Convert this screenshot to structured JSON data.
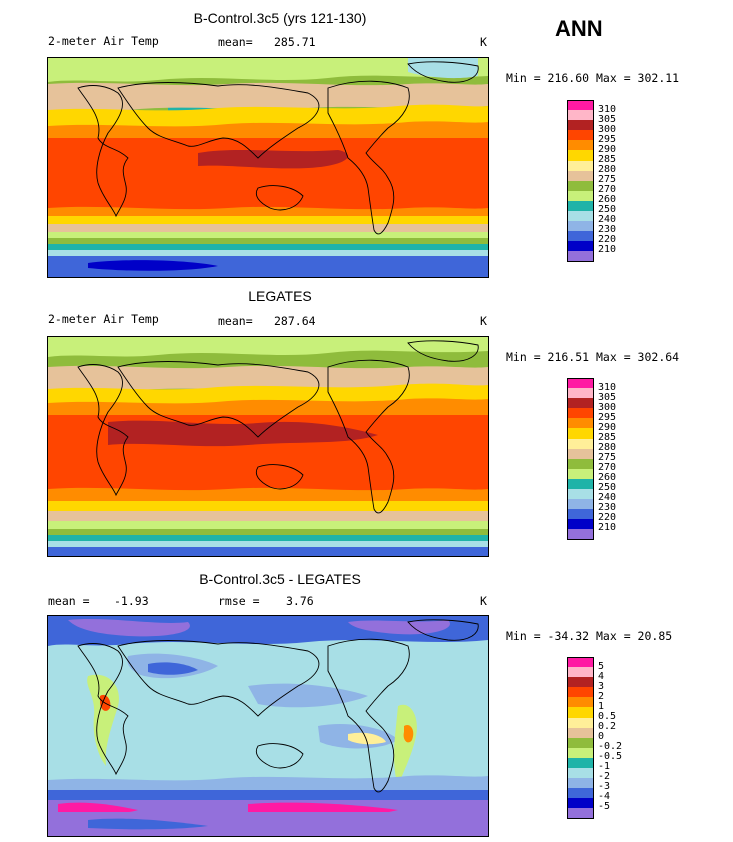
{
  "season": "ANN",
  "panels": [
    {
      "title": "B-Control.3c5 (yrs 121-130)",
      "left_label": "2-meter Air Temp",
      "center_label": "mean=",
      "center_value": "285.71",
      "units": "K",
      "minmax": "Min = 216.60 Max = 302.11",
      "legend_labels": [
        "310",
        "305",
        "300",
        "295",
        "290",
        "285",
        "280",
        "275",
        "270",
        "260",
        "250",
        "240",
        "230",
        "220",
        "210"
      ]
    },
    {
      "title": "LEGATES",
      "left_label": "2-meter Air Temp",
      "center_label": "mean=",
      "center_value": "287.64",
      "units": "K",
      "minmax": "Min = 216.51 Max = 302.64",
      "legend_labels": [
        "310",
        "305",
        "300",
        "295",
        "290",
        "285",
        "280",
        "275",
        "270",
        "260",
        "250",
        "240",
        "230",
        "220",
        "210"
      ]
    },
    {
      "title": "B-Control.3c5 - LEGATES",
      "left_label": "mean =",
      "left_value": "-1.93",
      "center_label": "rmse =",
      "center_value": "3.76",
      "units": "K",
      "minmax": "Min = -34.32 Max =  20.85",
      "legend_labels": [
        "5",
        "4",
        "3",
        "2",
        "1",
        "0.5",
        "0.2",
        "0",
        "-0.2",
        "-0.5",
        "-1",
        "-2",
        "-3",
        "-4",
        "-5"
      ]
    }
  ],
  "colors": {
    "abs_scale": [
      "#ff1aa3",
      "#ffb6c8",
      "#b22222",
      "#ff4500",
      "#ff8c00",
      "#ffd700",
      "#ffef99",
      "#e6c29a",
      "#8fbc3c",
      "#c8f07a",
      "#1fb3a8",
      "#a8dfe6",
      "#8fb4e6",
      "#3f66d9",
      "#0000c8",
      "#9370db"
    ],
    "diff_scale": [
      "#ff1aa3",
      "#ffb6c8",
      "#b22222",
      "#ff4500",
      "#ff8c00",
      "#ffd700",
      "#ffef99",
      "#e6c29a",
      "#8fbc3c",
      "#c8f07a",
      "#1fb3a8",
      "#a8dfe6",
      "#8fb4e6",
      "#3f66d9",
      "#0000c8",
      "#9370db"
    ]
  }
}
